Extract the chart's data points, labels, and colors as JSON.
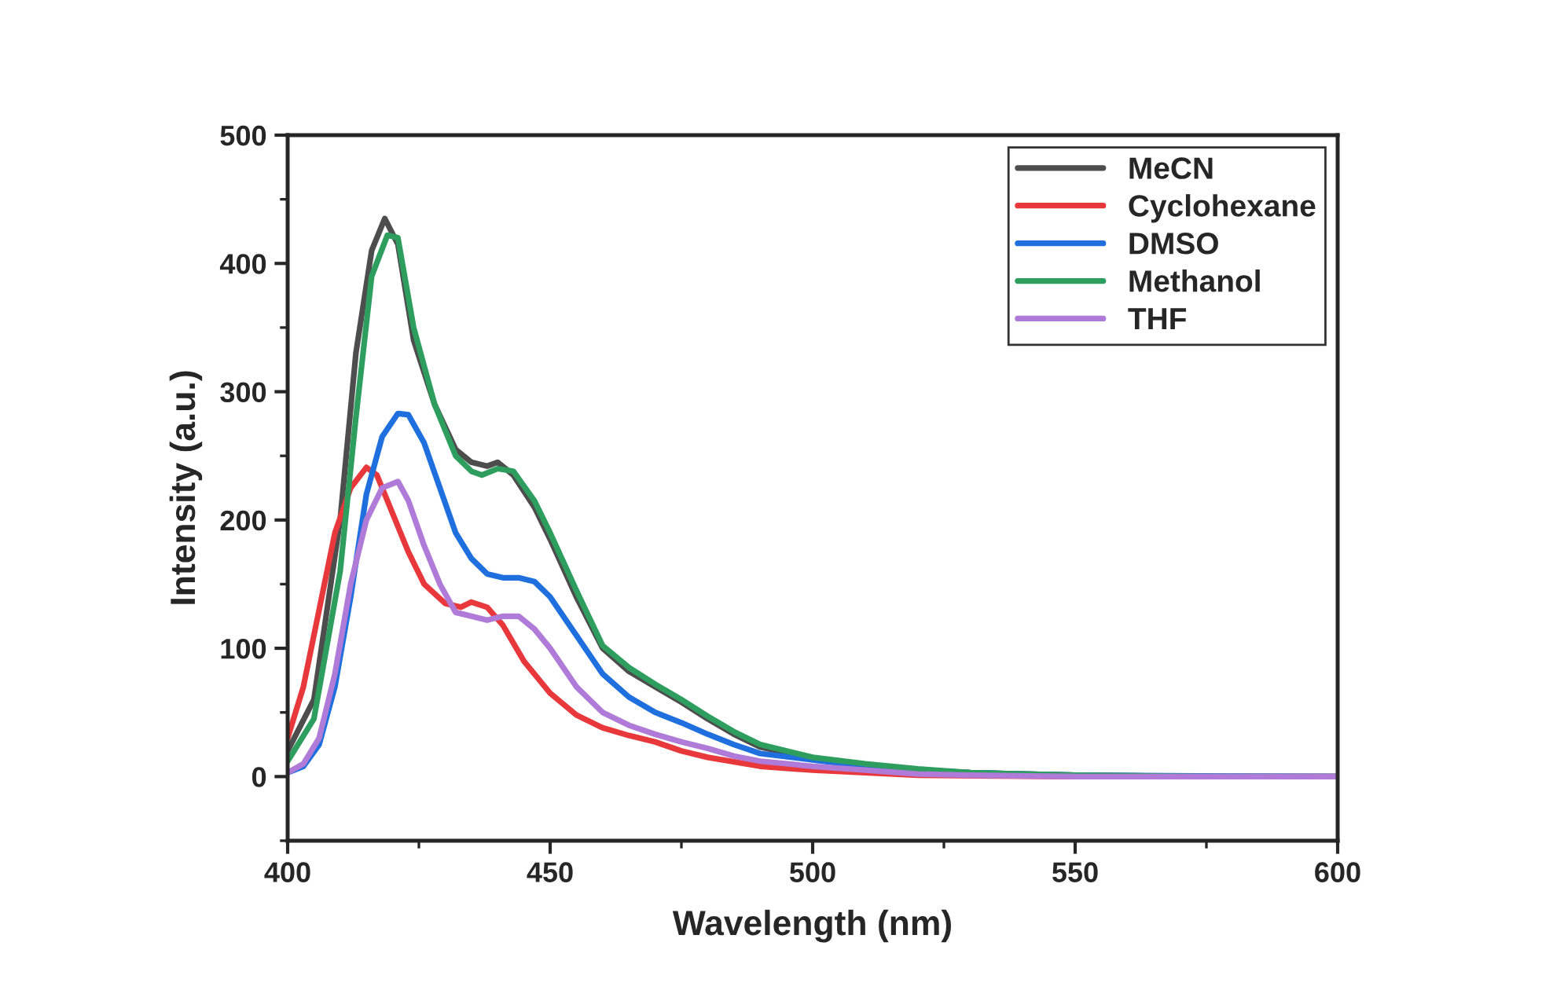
{
  "chart_data": {
    "type": "line",
    "xlabel": "Wavelength (nm)",
    "ylabel": "Intensity (a.u.)",
    "xlim": [
      400,
      600
    ],
    "xticks": [
      400,
      450,
      500,
      550,
      600
    ],
    "ylim": [
      -50,
      500
    ],
    "yticks": [
      0,
      100,
      200,
      300,
      400,
      500
    ],
    "grid": false,
    "legend": "top right",
    "marker": "none",
    "line_style": "solid",
    "series": [
      {
        "name": "MeCN",
        "color": "#4d4d4d",
        "x": [
          400,
          405,
          410,
          413,
          416,
          418.5,
          421,
          424,
          428,
          432,
          435,
          438,
          440,
          443,
          447,
          450,
          455,
          460,
          465,
          470,
          475,
          480,
          485,
          490,
          500,
          510,
          520,
          530,
          540,
          550,
          575,
          600
        ],
        "values": [
          20,
          60,
          200,
          330,
          410,
          435,
          415,
          340,
          290,
          255,
          245,
          242,
          245,
          235,
          210,
          185,
          140,
          100,
          82,
          70,
          58,
          45,
          33,
          23,
          14,
          9,
          5,
          3,
          2,
          1,
          0,
          0
        ]
      },
      {
        "name": "Cyclohexane",
        "color": "#e8383b",
        "x": [
          400,
          403,
          406,
          409,
          412,
          415,
          417,
          420,
          423,
          426,
          430,
          433,
          435,
          438,
          441,
          445,
          450,
          455,
          460,
          465,
          470,
          475,
          480,
          490,
          500,
          510,
          520,
          550,
          600
        ],
        "values": [
          30,
          70,
          130,
          190,
          225,
          241,
          235,
          205,
          175,
          150,
          135,
          132,
          136,
          132,
          118,
          90,
          65,
          48,
          38,
          32,
          27,
          20,
          15,
          8,
          5,
          3,
          1,
          0,
          0
        ]
      },
      {
        "name": "DMSO",
        "color": "#1f6fde",
        "x": [
          400,
          403,
          406,
          409,
          412,
          415,
          418,
          421,
          423,
          426,
          429,
          432,
          435,
          438,
          441,
          444,
          447,
          450,
          455,
          460,
          465,
          470,
          475,
          480,
          485,
          490,
          500,
          510,
          520,
          530,
          550,
          600
        ],
        "values": [
          3,
          8,
          25,
          70,
          140,
          220,
          265,
          283,
          282,
          260,
          225,
          190,
          170,
          158,
          155,
          155,
          152,
          140,
          110,
          80,
          62,
          50,
          42,
          33,
          25,
          18,
          13,
          8,
          5,
          3,
          1,
          0
        ]
      },
      {
        "name": "Methanol",
        "color": "#2e9e5e",
        "x": [
          400,
          405,
          410,
          413,
          416,
          419,
          421,
          424,
          428,
          432,
          435,
          437,
          440,
          443,
          447,
          450,
          455,
          460,
          465,
          470,
          475,
          480,
          485,
          490,
          500,
          510,
          520,
          530,
          540,
          550,
          575,
          600
        ],
        "values": [
          12,
          45,
          160,
          280,
          390,
          422,
          420,
          350,
          290,
          250,
          238,
          235,
          240,
          238,
          215,
          190,
          145,
          102,
          85,
          72,
          60,
          47,
          35,
          25,
          15,
          10,
          6,
          3,
          2,
          1,
          0,
          0
        ]
      },
      {
        "name": "THF",
        "color": "#b07ad8",
        "x": [
          400,
          403,
          406,
          409,
          412,
          415,
          418,
          421,
          423,
          426,
          429,
          432,
          435,
          438,
          441,
          444,
          447,
          450,
          455,
          460,
          465,
          470,
          475,
          480,
          485,
          490,
          500,
          510,
          520,
          530,
          550,
          600
        ],
        "values": [
          3,
          10,
          30,
          80,
          150,
          200,
          225,
          230,
          215,
          180,
          150,
          128,
          125,
          122,
          125,
          125,
          115,
          100,
          70,
          50,
          40,
          33,
          27,
          22,
          16,
          12,
          8,
          5,
          2,
          1,
          0,
          0
        ]
      }
    ]
  }
}
